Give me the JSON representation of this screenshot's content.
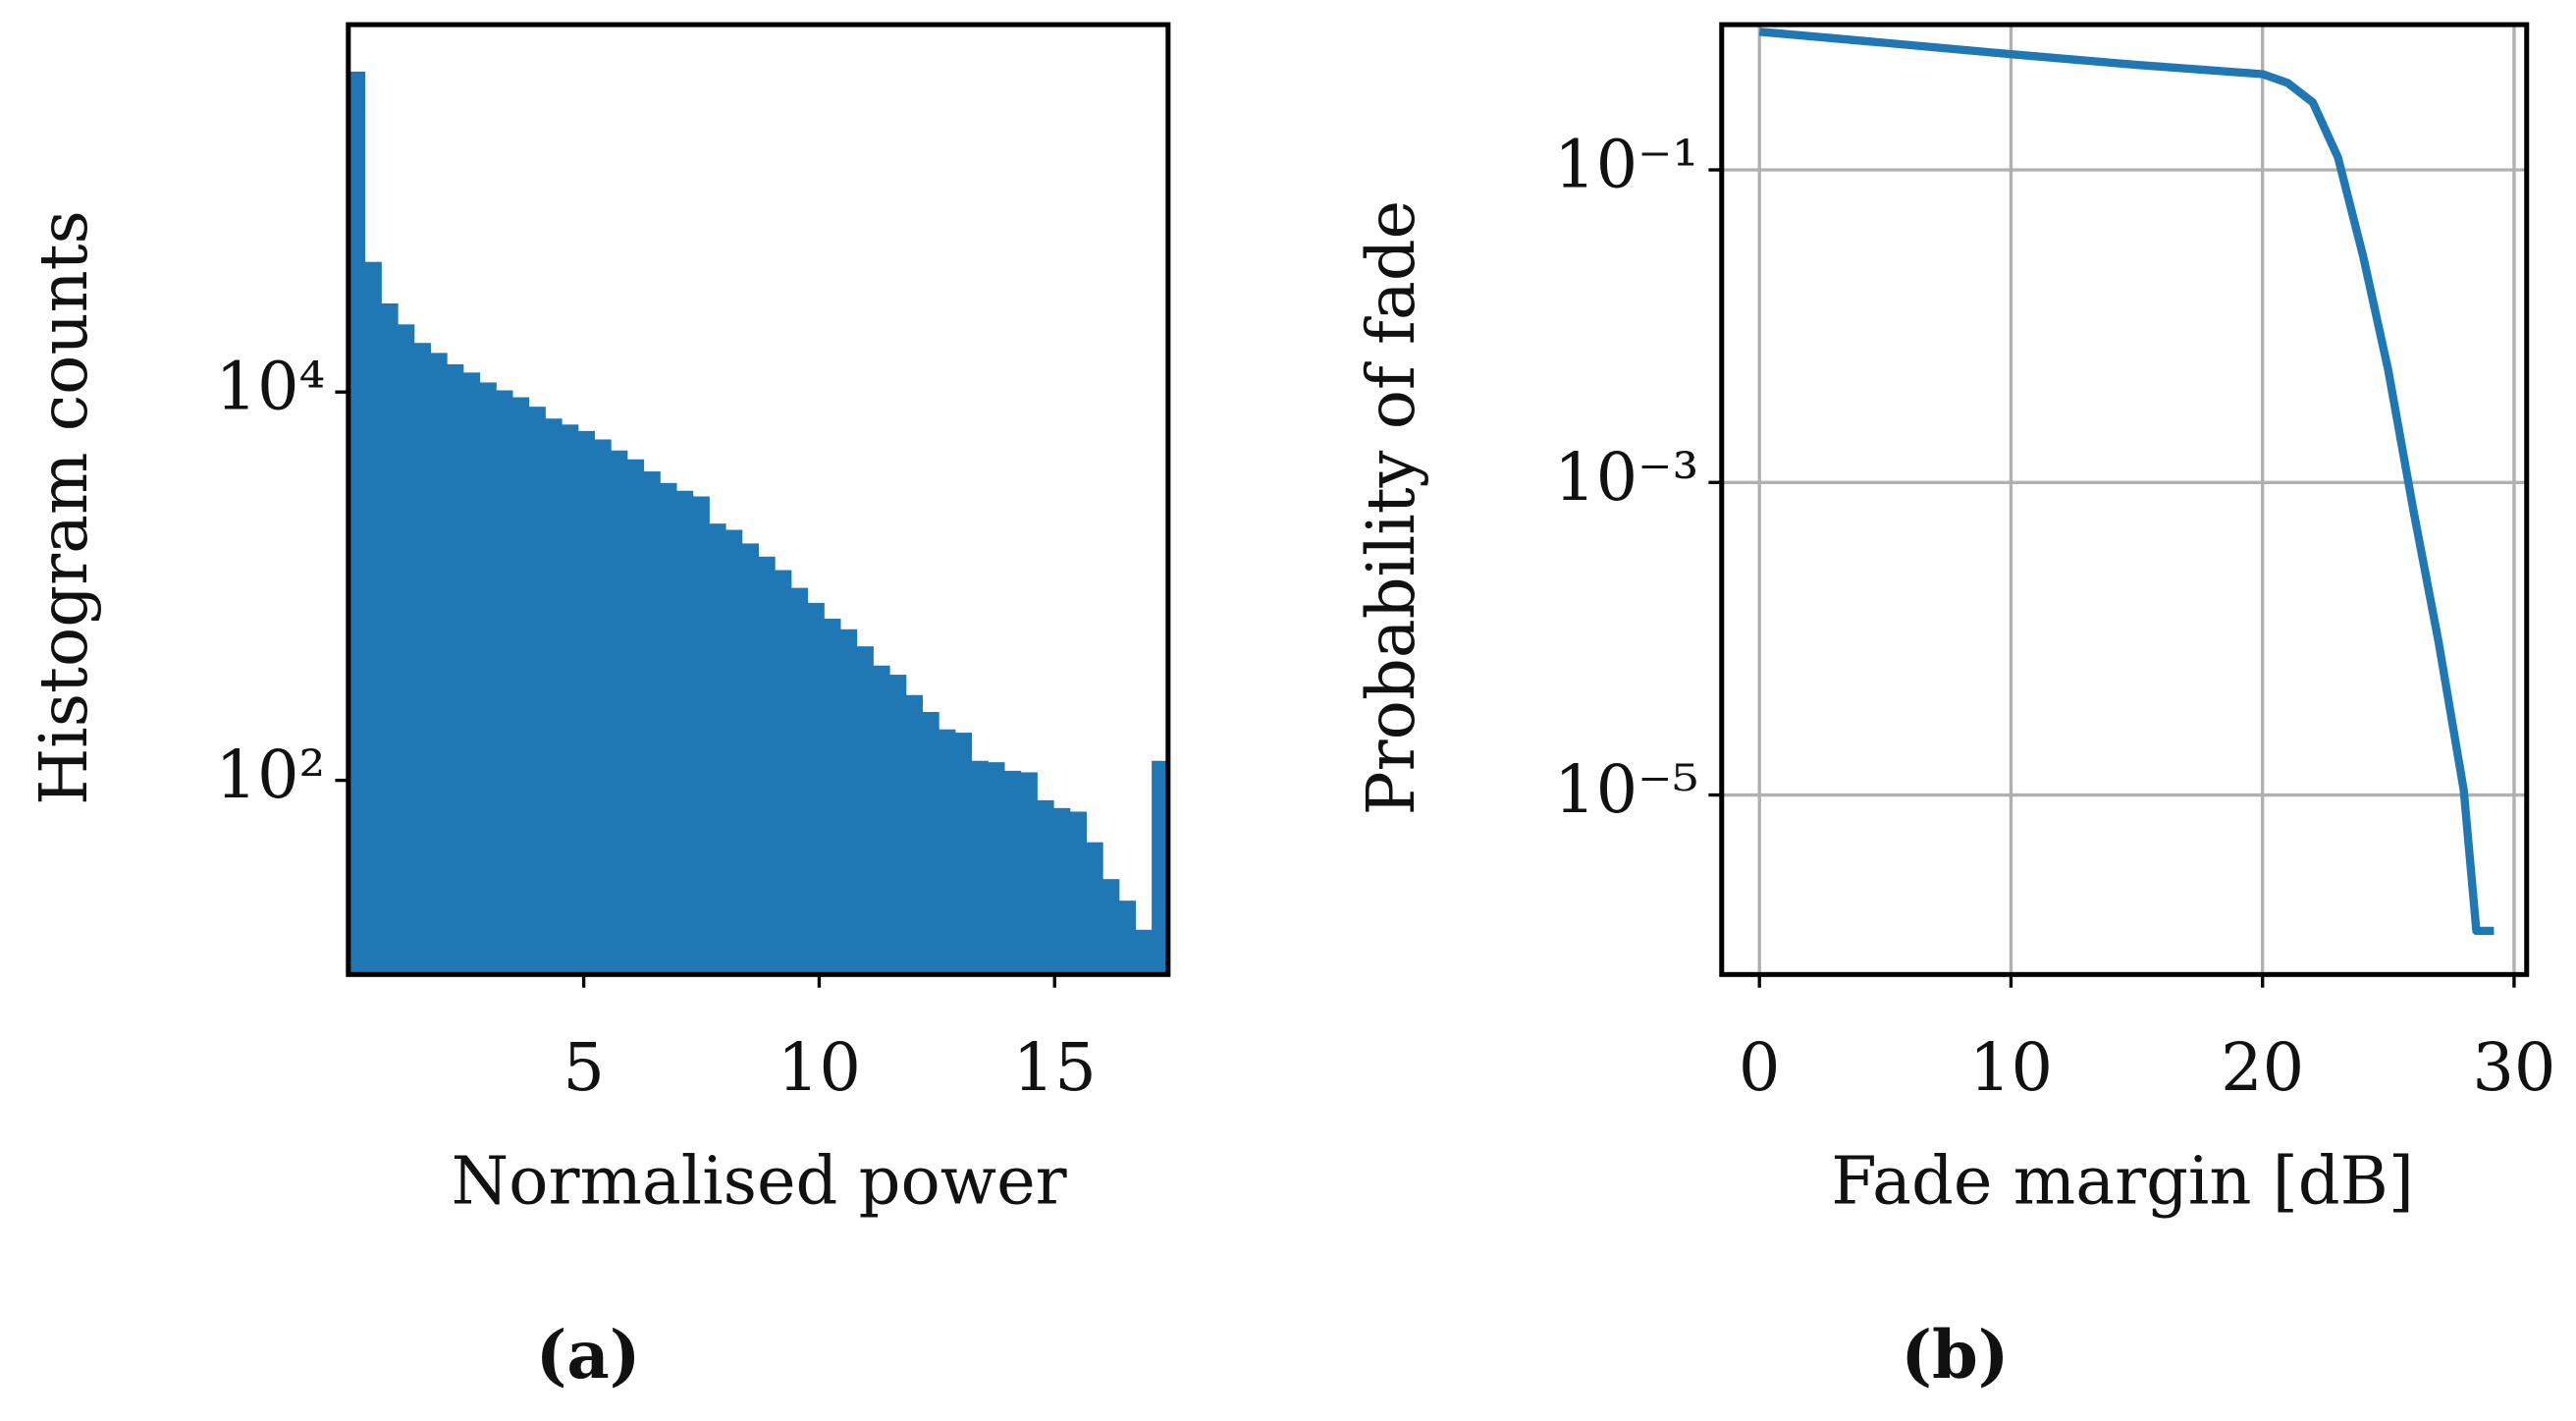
{
  "chart_data": [
    {
      "type": "histogram",
      "caption": "(a)",
      "xlabel": "Normalised power",
      "ylabel": "Histogram counts",
      "color": "#1f77b4",
      "yscale": "log",
      "grid": false,
      "bins": [
        0,
        0.348,
        0.696,
        1.045,
        1.393,
        1.741,
        2.089,
        2.437,
        2.786,
        3.134,
        3.482,
        3.83,
        4.178,
        4.527,
        4.875,
        5.223,
        5.571,
        5.919,
        6.268,
        6.616,
        6.964,
        7.312,
        7.66,
        8.009,
        8.357,
        8.705,
        9.053,
        9.401,
        9.75,
        10.098,
        10.446,
        10.794,
        11.142,
        11.491,
        11.839,
        12.187,
        12.535,
        12.883,
        13.232,
        13.58,
        13.928,
        14.276,
        14.624,
        14.973,
        15.321,
        15.669,
        16.017,
        16.365,
        16.714,
        17.062,
        17.41
      ],
      "counts": [
        447000,
        46800,
        28600,
        22300,
        17900,
        15900,
        13900,
        12600,
        11200,
        10200,
        9400,
        8400,
        7300,
        6800,
        6300,
        5700,
        5000,
        4500,
        3900,
        3400,
        3100,
        2900,
        2100,
        1950,
        1660,
        1420,
        1210,
        980,
        820,
        680,
        600,
        490,
        390,
        350,
        275,
        225,
        183,
        176,
        126,
        124,
        112,
        110,
        79,
        72,
        69,
        48,
        31,
        24,
        17,
        126
      ],
      "xlim": [
        0,
        17.41
      ],
      "xticks": [
        5,
        10,
        15
      ],
      "ylim": [
        10,
        780000
      ],
      "yticks": [
        {
          "value": 100,
          "label": "10²"
        },
        {
          "value": 10000,
          "label": "10⁴"
        }
      ]
    },
    {
      "type": "line",
      "caption": "(b)",
      "xlabel": "Fade margin [dB]",
      "ylabel": "Probability of fade",
      "color": "#1f77b4",
      "yscale": "log",
      "grid": true,
      "x": [
        0,
        5,
        10,
        15,
        20,
        21,
        22,
        23,
        24,
        25,
        26,
        27,
        28,
        28.5,
        29.2
      ],
      "y": [
        0.766,
        0.65,
        0.55,
        0.47,
        0.41,
        0.36,
        0.27,
        0.12,
        0.028,
        0.0052,
        0.00066,
        9.5e-05,
        1.07e-05,
        1.35e-06,
        1.35e-06
      ],
      "xlim": [
        -1.5,
        30.5
      ],
      "xticks": [
        0,
        10,
        20,
        30
      ],
      "ylim": [
        7.1e-07,
        0.85
      ],
      "yticks": [
        {
          "value": 0.1,
          "label": "10⁻¹"
        },
        {
          "value": 0.001,
          "label": "10⁻³"
        },
        {
          "value": 1e-05,
          "label": "10⁻⁵"
        }
      ]
    }
  ]
}
